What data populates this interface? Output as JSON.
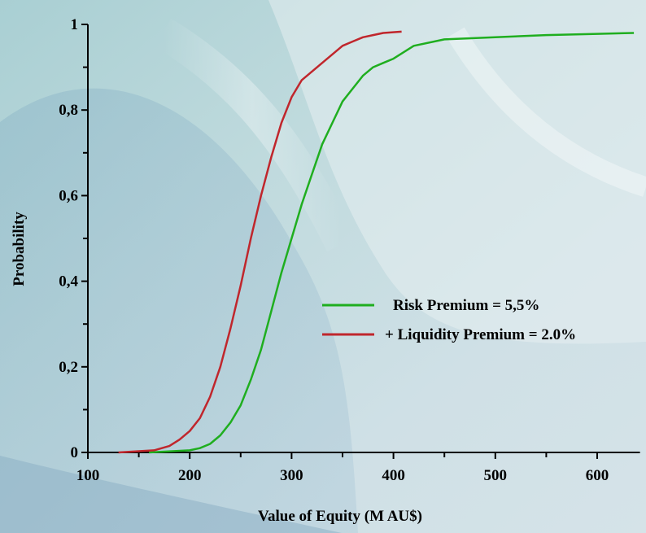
{
  "colors": {
    "risk_series": "#1fae1f",
    "liquidity_series": "#c0262c",
    "axis": "#000000"
  },
  "chart_data": {
    "type": "line",
    "title": "",
    "xlabel": "Value of Equity (M AU$)",
    "ylabel": "Probability",
    "xlim": [
      100,
      640
    ],
    "ylim": [
      0,
      1
    ],
    "x_ticks": [
      100,
      200,
      300,
      400,
      500,
      600
    ],
    "x_tick_labels": [
      "100",
      "200",
      "300",
      "400",
      "500",
      "600"
    ],
    "y_ticks": [
      0,
      0.2,
      0.4,
      0.6,
      0.8,
      1
    ],
    "y_tick_labels": [
      "0",
      "0,2",
      "0,4",
      "0,6",
      "0,8",
      "1"
    ],
    "grid": false,
    "legend_position": "center-right",
    "series": [
      {
        "name": "Risk Premium = 5,5%",
        "color": "#1fae1f",
        "x": [
          160,
          200,
          210,
          220,
          230,
          240,
          250,
          260,
          270,
          280,
          290,
          300,
          310,
          320,
          330,
          340,
          350,
          360,
          370,
          380,
          390,
          400,
          420,
          450,
          500,
          550,
          600,
          636
        ],
        "y": [
          0.0,
          0.005,
          0.01,
          0.02,
          0.04,
          0.07,
          0.11,
          0.17,
          0.24,
          0.33,
          0.42,
          0.5,
          0.58,
          0.65,
          0.72,
          0.77,
          0.82,
          0.85,
          0.88,
          0.9,
          0.91,
          0.92,
          0.95,
          0.965,
          0.97,
          0.975,
          0.978,
          0.98
        ]
      },
      {
        "name": "+ Liquidity Premium = 2.0%",
        "color": "#c0262c",
        "x": [
          130,
          165,
          180,
          190,
          200,
          210,
          220,
          230,
          240,
          250,
          260,
          270,
          280,
          290,
          300,
          310,
          320,
          330,
          340,
          350,
          360,
          370,
          380,
          390,
          408
        ],
        "y": [
          0.0,
          0.005,
          0.015,
          0.03,
          0.05,
          0.08,
          0.13,
          0.2,
          0.29,
          0.39,
          0.5,
          0.6,
          0.69,
          0.77,
          0.83,
          0.87,
          0.89,
          0.91,
          0.93,
          0.95,
          0.96,
          0.97,
          0.975,
          0.98,
          0.983
        ]
      }
    ]
  }
}
